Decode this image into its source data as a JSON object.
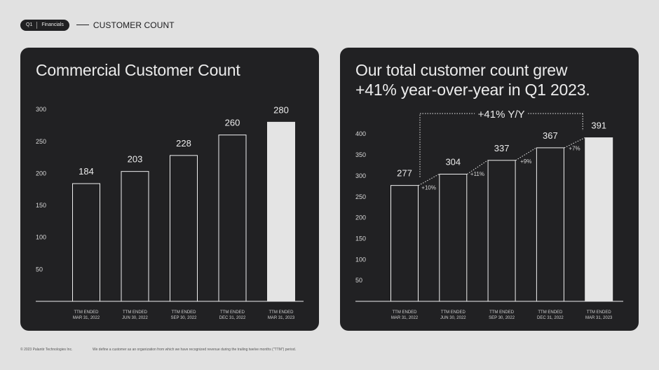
{
  "header": {
    "badge_left": "Q1",
    "badge_right": "Financials",
    "section": "CUSTOMER COUNT"
  },
  "left_panel": {
    "title": "Commercial Customer Count"
  },
  "right_panel": {
    "title_line1": "Our total customer count grew",
    "title_line2": "+41% year-over-year in Q1 2023."
  },
  "footer": {
    "copyright": "© 2023 Palantir Technologies Inc.",
    "note": "We define a customer as an organization from which we have recognized revenue during the trailing twelve months (\"TTM\") period."
  },
  "colors": {
    "background": "#e1e1e1",
    "panel": "#212123",
    "bar_outline": "#f0f0f0",
    "highlight_bar": "#e4e4e4"
  },
  "chart_data": [
    {
      "type": "bar",
      "title": "Commercial Customer Count",
      "categories": [
        [
          "TTM ENDED",
          "MAR 31, 2022"
        ],
        [
          "TTM ENDED",
          "JUN 30, 2022"
        ],
        [
          "TTM ENDED",
          "SEP 30, 2022"
        ],
        [
          "TTM ENDED",
          "DEC 31, 2022"
        ],
        [
          "TTM ENDED",
          "MAR 31, 2023"
        ]
      ],
      "values": [
        184,
        203,
        228,
        260,
        280
      ],
      "data_labels": [
        "184",
        "203",
        "228",
        "260",
        "280"
      ],
      "yticks": [
        50,
        100,
        150,
        200,
        250,
        300
      ],
      "ylim": [
        0,
        300
      ],
      "highlight_last": true,
      "grid": false
    },
    {
      "type": "bar",
      "title": "Our total customer count grew +41% year-over-year in Q1 2023.",
      "categories": [
        [
          "TTM ENDED",
          "MAR 31, 2022"
        ],
        [
          "TTM ENDED",
          "JUN 30, 2022"
        ],
        [
          "TTM ENDED",
          "SEP 30, 2022"
        ],
        [
          "TTM ENDED",
          "DEC 31, 2022"
        ],
        [
          "TTM ENDED",
          "MAR 31, 2023"
        ]
      ],
      "values": [
        277,
        304,
        337,
        367,
        391
      ],
      "data_labels": [
        "277",
        "304",
        "337",
        "367",
        "391"
      ],
      "growth_labels": [
        "+10%",
        "+11%",
        "+9%",
        "+7%"
      ],
      "yoy_label": "+41% Y/Y",
      "yticks": [
        50,
        100,
        150,
        200,
        250,
        300,
        350,
        400
      ],
      "ylim": [
        0,
        400
      ],
      "highlight_last": true,
      "grid": false
    }
  ]
}
